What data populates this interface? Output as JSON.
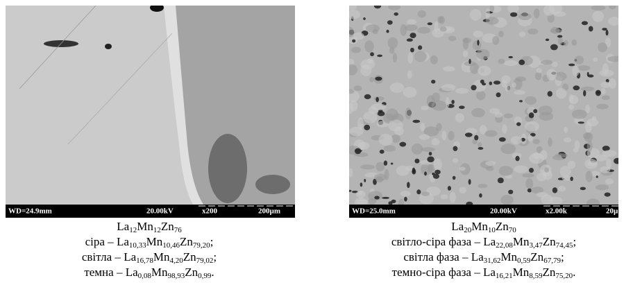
{
  "panels": [
    {
      "micrograph": {
        "wd": "WD=24.9mm",
        "kv": "20.00kV",
        "mag": "x200",
        "scale": "200µm"
      },
      "caption": {
        "formula": [
          [
            "La",
            "12"
          ],
          [
            "Mn",
            "12"
          ],
          [
            "Zn",
            "76"
          ]
        ],
        "phases": [
          {
            "label": "сіра –",
            "formula": [
              [
                "La",
                "10,33"
              ],
              [
                "Mn",
                "10,46"
              ],
              [
                "Zn",
                "79,20"
              ]
            ],
            "end": ";"
          },
          {
            "label": "світла –",
            "formula": [
              [
                "La",
                "16,78"
              ],
              [
                "Mn",
                "4,20"
              ],
              [
                "Zn",
                "79,02"
              ]
            ],
            "end": ";"
          },
          {
            "label": "темна –",
            "formula": [
              [
                "La",
                "0,08"
              ],
              [
                "Mn",
                "98,93"
              ],
              [
                "Zn",
                "0,99"
              ]
            ],
            "end": "."
          }
        ]
      }
    },
    {
      "micrograph": {
        "wd": "WD=25.0mm",
        "kv": "20.00kV",
        "mag": "x2.00k",
        "scale": "20µ"
      },
      "caption": {
        "formula": [
          [
            "La",
            "20"
          ],
          [
            "Mn",
            "10"
          ],
          [
            "Zn",
            "70"
          ]
        ],
        "phases": [
          {
            "label": "світло-сіра фаза –",
            "formula": [
              [
                "La",
                "22,08"
              ],
              [
                "Mn",
                "3,47"
              ],
              [
                "Zn",
                "74,45"
              ]
            ],
            "end": ";"
          },
          {
            "label": "світла фаза –",
            "formula": [
              [
                "La",
                "31,62"
              ],
              [
                "Mn",
                "0,59"
              ],
              [
                "Zn",
                "67,79"
              ]
            ],
            "end": ";"
          },
          {
            "label": "темно-сіра фаза –",
            "formula": [
              [
                "La",
                "16,21"
              ],
              [
                "Mn",
                "8,59"
              ],
              [
                "Zn",
                "75,20"
              ]
            ],
            "end": "."
          }
        ]
      }
    }
  ]
}
